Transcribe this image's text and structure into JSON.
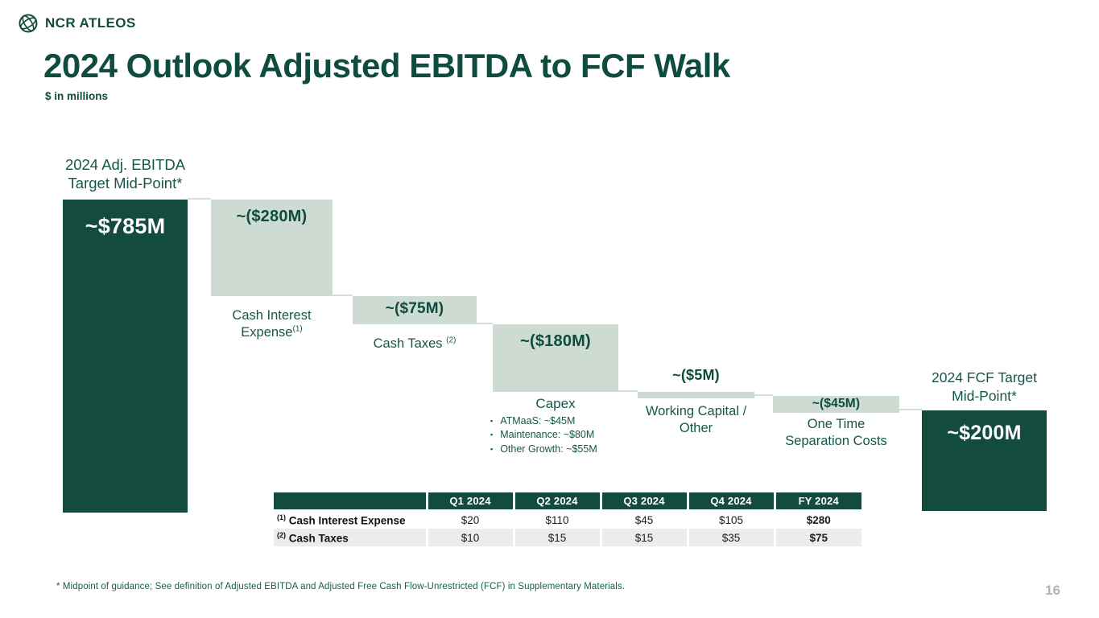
{
  "header": {
    "brand": "NCR ATLEOS"
  },
  "title": "2024 Outlook Adjusted EBITDA to FCF Walk",
  "subtitle": "$ in millions",
  "footnote": "* Midpoint of guidance; See definition of Adjusted EBITDA and Adjusted Free Cash Flow-Unrestricted (FCF) in Supplementary Materials.",
  "page_number": "16",
  "colors": {
    "brand_dark": "#134B3E",
    "light_bar": "#CDDBD2",
    "title_green": "#0E4C3F",
    "label_green": "#17564A",
    "footnote_teal": "#15604F",
    "row_alt_gray": "#ECECEC",
    "connector_gray": "#D9DED9",
    "page_number_gray": "#B3B3B3"
  },
  "chart_data": {
    "type": "bar",
    "subtype": "waterfall",
    "title": "2024 Outlook Adjusted EBITDA to FCF Walk",
    "unit": "$ in millions",
    "ylim": [
      0,
      785
    ],
    "grid": false,
    "legend": false,
    "bars": [
      {
        "name": "2024 Adj. EBITDA Target Mid-Point",
        "kind": "total",
        "value": 785,
        "display": "~$785M",
        "label_above": "2024 Adj. EBITDA\nTarget Mid-Point*"
      },
      {
        "name": "Cash Interest Expense",
        "kind": "decrease",
        "value": -280,
        "display": "~($280M)",
        "label_below": "Cash Interest\nExpense",
        "label_sup": "(1)",
        "sup_gap": false
      },
      {
        "name": "Cash Taxes",
        "kind": "decrease",
        "value": -75,
        "display": "~($75M)",
        "label_below": "Cash Taxes",
        "label_sup": "(2)",
        "sup_gap": true
      },
      {
        "name": "Capex",
        "kind": "decrease",
        "value": -180,
        "display": "~($180M)",
        "label_below": "Capex",
        "bullets": [
          "ATMaaS: ~$45M",
          "Maintenance: ~$80M",
          "Other Growth: ~$55M"
        ]
      },
      {
        "name": "Working Capital / Other",
        "kind": "decrease",
        "value": -5,
        "display": "~($5M)",
        "label_below": "Working Capital /\nOther"
      },
      {
        "name": "One Time Separation Costs",
        "kind": "decrease",
        "value": -45,
        "display": "~($45M)",
        "label_below": "One Time\nSeparation Costs"
      },
      {
        "name": "2024 FCF Target Mid-Point",
        "kind": "total",
        "value": 200,
        "display": "~$200M",
        "label_above": "2024 FCF Target\nMid-Point*"
      }
    ]
  },
  "table": {
    "columns": [
      "",
      "Q1 2024",
      "Q2 2024",
      "Q3 2024",
      "Q4 2024",
      "FY 2024"
    ],
    "rows": [
      {
        "sup": "(1)",
        "label": "Cash Interest Expense",
        "values": [
          "$20",
          "$110",
          "$45",
          "$105",
          "$280"
        ]
      },
      {
        "sup": "(2)",
        "label": "Cash Taxes",
        "values": [
          "$10",
          "$15",
          "$15",
          "$35",
          "$75"
        ]
      }
    ]
  }
}
